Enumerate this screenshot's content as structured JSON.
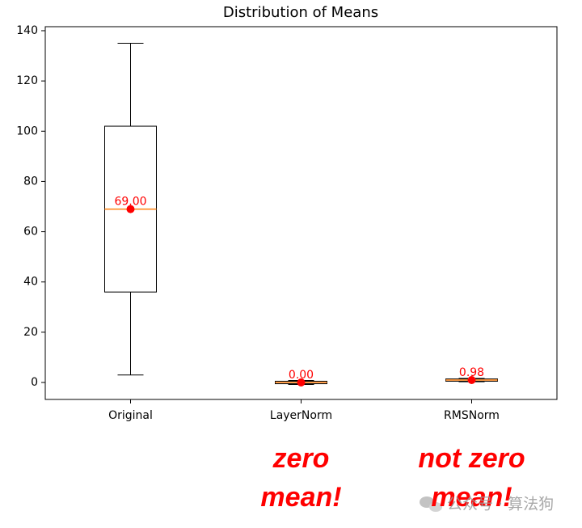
{
  "chart_data": {
    "type": "box",
    "title": "Distribution of Means",
    "categories": [
      "Original",
      "LayerNorm",
      "RMSNorm"
    ],
    "boxes": [
      {
        "whislo": 3,
        "q1": 36,
        "med": 69,
        "q3": 102,
        "whishi": 135
      },
      {
        "whislo": -0.8,
        "q1": -0.5,
        "med": 0,
        "q3": 0.5,
        "whishi": 0.8
      },
      {
        "whislo": 0.3,
        "q1": 0.5,
        "med": 0.98,
        "q3": 1.4,
        "whishi": 1.6
      }
    ],
    "values": [
      69,
      0,
      0.98
    ],
    "value_labels": [
      "69.00",
      "0.00",
      "0.98"
    ],
    "box_color": "#000000",
    "median_color": "#ff7f0e",
    "mean_color": "#ff0000",
    "ylim": [
      -6.75,
      141.6
    ],
    "yticks": [
      0,
      20,
      40,
      60,
      80,
      100,
      120,
      140
    ],
    "annotations": [
      {
        "category": 1,
        "lines": [
          "zero",
          "mean!"
        ]
      },
      {
        "category": 2,
        "lines": [
          "not zero",
          "mean!"
        ]
      }
    ],
    "annotation_color": "#ff0000",
    "watermark": "公众号 · 算法狗"
  }
}
